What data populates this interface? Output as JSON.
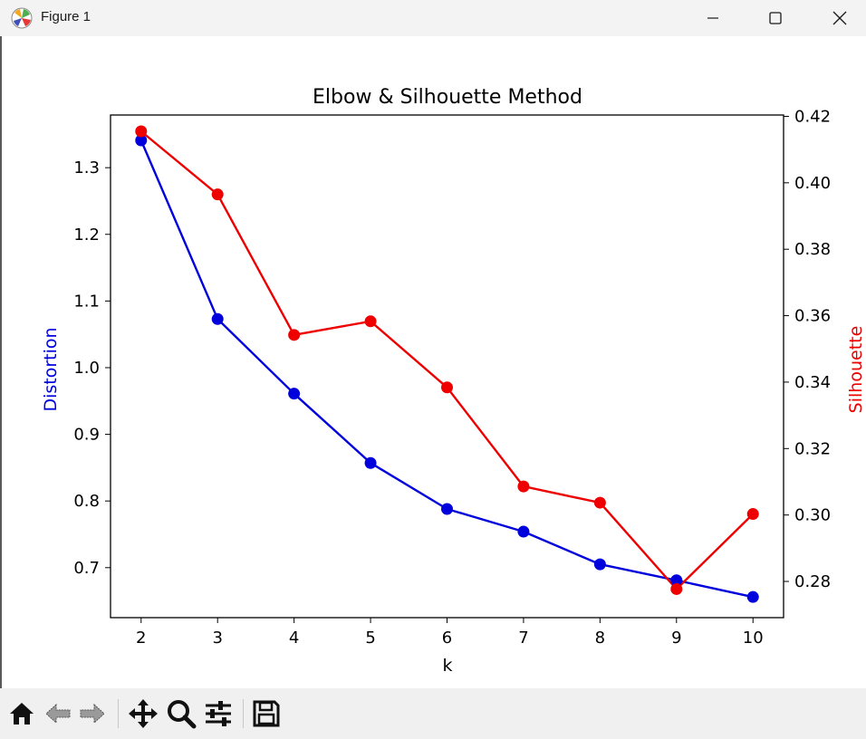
{
  "window": {
    "title": "Figure 1",
    "icons": [
      "matplotlib-app-icon",
      "minimize-icon",
      "maximize-icon",
      "close-icon"
    ]
  },
  "toolbar": {
    "buttons": [
      "home-icon",
      "back-icon",
      "forward-icon",
      "pan-icon",
      "zoom-icon",
      "configure-subplots-icon",
      "save-icon"
    ]
  },
  "colors": {
    "distortion": "#0000dd",
    "silhouette": "#ee0000"
  },
  "chart_data": {
    "type": "line",
    "title": "Elbow & Silhouette Method",
    "xlabel": "k",
    "ylabel_left": "Distortion",
    "ylabel_right": "Silhouette",
    "x": [
      2,
      3,
      4,
      5,
      6,
      7,
      8,
      9,
      10
    ],
    "xlim": [
      1.6,
      10.4
    ],
    "ylim_left": [
      0.625,
      1.379
    ],
    "ylim_right": [
      0.2691,
      0.4204
    ],
    "yticks_left": [
      "0.7",
      "0.8",
      "0.9",
      "1.0",
      "1.1",
      "1.2",
      "1.3"
    ],
    "yticks_right": [
      "0.28",
      "0.30",
      "0.32",
      "0.34",
      "0.36",
      "0.38",
      "0.40",
      "0.42"
    ],
    "xticks": [
      "2",
      "3",
      "4",
      "5",
      "6",
      "7",
      "8",
      "9",
      "10"
    ],
    "grid": false,
    "series": [
      {
        "axis": "left",
        "color": "#0000dd",
        "marker": "circle",
        "values": [
          1.341,
          1.073,
          0.961,
          0.857,
          0.788,
          0.754,
          0.705,
          0.681,
          0.656
        ]
      },
      {
        "axis": "right",
        "color": "#ee0000",
        "marker": "circle",
        "values": [
          0.4155,
          0.3965,
          0.3542,
          0.3583,
          0.3384,
          0.3086,
          0.3037,
          0.2777,
          0.3003
        ]
      }
    ]
  }
}
